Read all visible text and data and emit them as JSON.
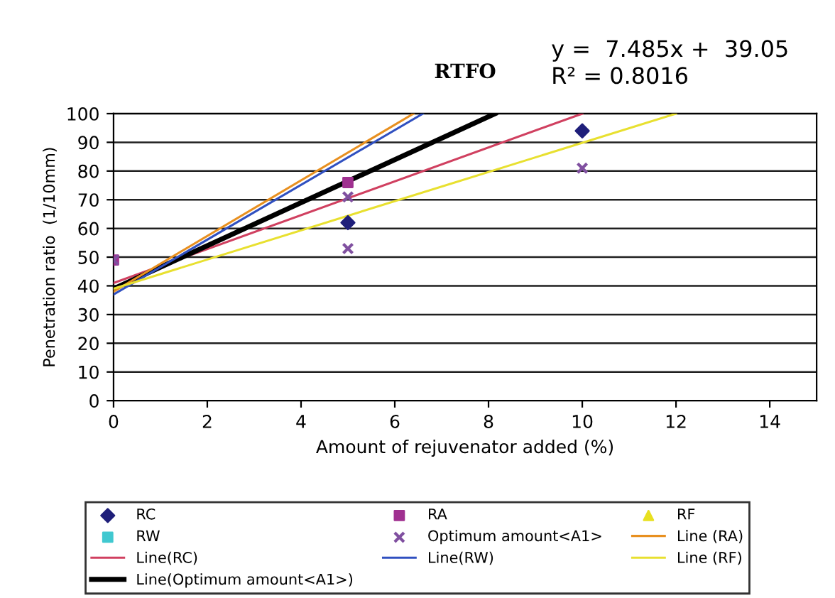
{
  "chart_data": {
    "type": "scatter",
    "title": "RTFO",
    "xlabel": "Amount of rejuvenator added (%)",
    "ylabel": "Penetration ratio  (1/10mm)",
    "annotations": [
      "y =  7.485x +  39.05",
      "R² = 0.8016"
    ],
    "xlim": [
      0,
      15
    ],
    "xticks": [
      0,
      2,
      4,
      6,
      8,
      10,
      12,
      14
    ],
    "ylim": [
      0,
      100
    ],
    "yticks": [
      0,
      10,
      20,
      30,
      40,
      50,
      60,
      70,
      80,
      90,
      100
    ],
    "grid": "y",
    "legend": "bottom",
    "series": [
      {
        "name": "RC",
        "color": "#1f1f7a",
        "marker": "diamond",
        "x": [
          5,
          10
        ],
        "values": [
          62,
          94
        ]
      },
      {
        "name": "RW",
        "color": "#40c8d0",
        "marker": "square"
      },
      {
        "name": "Line(RC)",
        "type": "line",
        "color": "#d04060",
        "x": [
          0,
          10
        ],
        "values": [
          41,
          100
        ]
      },
      {
        "name": "Line(Optimum amount<A1>)",
        "type": "line",
        "color": "#000000",
        "x": [
          0,
          8.14
        ],
        "values": [
          39,
          100
        ]
      },
      {
        "name": "RA",
        "color": "#a03090",
        "marker": "square",
        "x": [
          0,
          5
        ],
        "values": [
          49,
          76
        ]
      },
      {
        "name": "Optimum amount<A1>",
        "color": "#8050a0",
        "marker": "cross",
        "x": [
          0,
          5,
          5,
          10
        ],
        "values": [
          49,
          71,
          53,
          81
        ]
      },
      {
        "name": "Line(RW)",
        "type": "line",
        "color": "#3050c0",
        "x": [
          0,
          6.6
        ],
        "values": [
          37,
          100
        ]
      },
      {
        "name": "RF",
        "color": "#e8e020",
        "marker": "triangle"
      },
      {
        "name": "Line (RA)",
        "type": "line",
        "color": "#e89020",
        "x": [
          0,
          6.4
        ],
        "values": [
          38,
          100
        ]
      },
      {
        "name": "Line (RF)",
        "type": "line",
        "color": "#e8e030",
        "x": [
          0,
          12
        ],
        "values": [
          39,
          100
        ]
      }
    ]
  }
}
